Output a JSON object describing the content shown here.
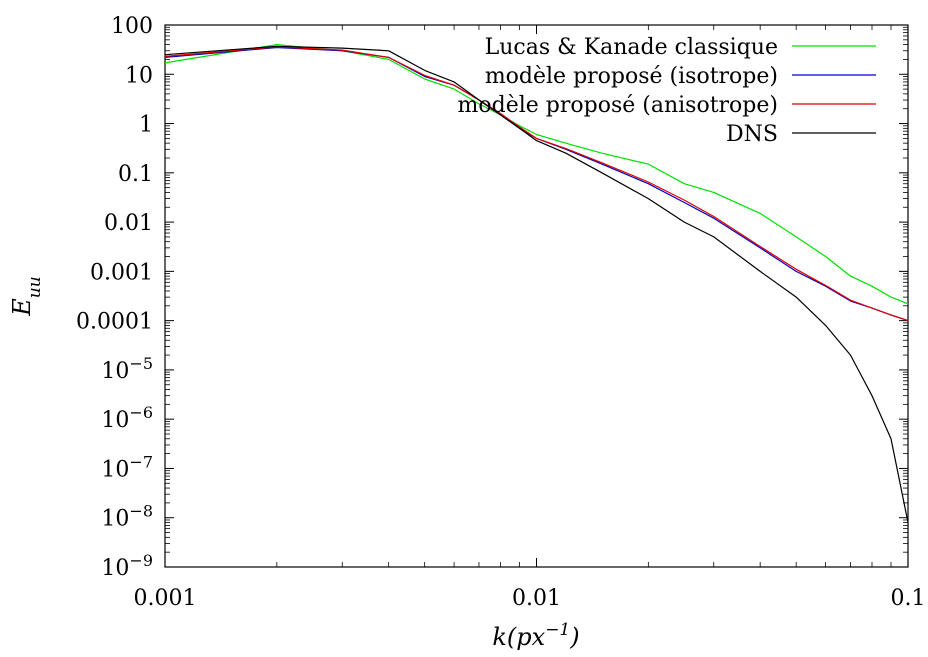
{
  "chart_data": {
    "type": "line",
    "xlabel": "k(px^-1)",
    "ylabel": "E_uu",
    "xscale": "log",
    "yscale": "log",
    "xlim": [
      0.001,
      0.1
    ],
    "ylim": [
      1e-09,
      100
    ],
    "grid": false,
    "legend_position": "top-right",
    "x_ticks": [
      {
        "value": 0.001,
        "label": "0.001"
      },
      {
        "value": 0.01,
        "label": "0.01"
      },
      {
        "value": 0.1,
        "label": "0.1"
      }
    ],
    "y_ticks": [
      {
        "value": 100,
        "label": "100"
      },
      {
        "value": 10,
        "label": "10"
      },
      {
        "value": 1,
        "label": "1"
      },
      {
        "value": 0.1,
        "label": "0.1"
      },
      {
        "value": 0.01,
        "label": "0.01"
      },
      {
        "value": 0.001,
        "label": "0.001"
      },
      {
        "value": 0.0001,
        "label": "0.0001"
      },
      {
        "value": 1e-05,
        "base": "10",
        "exp": "−5"
      },
      {
        "value": 1e-06,
        "base": "10",
        "exp": "−6"
      },
      {
        "value": 1e-07,
        "base": "10",
        "exp": "−7"
      },
      {
        "value": 1e-08,
        "base": "10",
        "exp": "−8"
      },
      {
        "value": 1e-09,
        "base": "10",
        "exp": "−9"
      }
    ],
    "series": [
      {
        "name": "Lucas & Kanade classique",
        "color": "#00e000",
        "points": [
          [
            0.001,
            17
          ],
          [
            0.002,
            40
          ],
          [
            0.003,
            30
          ],
          [
            0.004,
            20
          ],
          [
            0.005,
            8
          ],
          [
            0.006,
            5
          ],
          [
            0.007,
            2.5
          ],
          [
            0.008,
            1.5
          ],
          [
            0.009,
            0.9
          ],
          [
            0.01,
            0.6
          ],
          [
            0.012,
            0.4
          ],
          [
            0.015,
            0.25
          ],
          [
            0.02,
            0.15
          ],
          [
            0.025,
            0.06
          ],
          [
            0.03,
            0.04
          ],
          [
            0.04,
            0.015
          ],
          [
            0.05,
            0.005
          ],
          [
            0.06,
            0.002
          ],
          [
            0.07,
            0.0008
          ],
          [
            0.08,
            0.0005
          ],
          [
            0.09,
            0.0003
          ],
          [
            0.1,
            0.00022
          ]
        ]
      },
      {
        "name": "modèle proposé (isotrope)",
        "color": "#0000c8",
        "points": [
          [
            0.001,
            22
          ],
          [
            0.002,
            35
          ],
          [
            0.003,
            30
          ],
          [
            0.004,
            22
          ],
          [
            0.005,
            9
          ],
          [
            0.006,
            6
          ],
          [
            0.007,
            3
          ],
          [
            0.008,
            1.5
          ],
          [
            0.009,
            0.8
          ],
          [
            0.01,
            0.5
          ],
          [
            0.012,
            0.3
          ],
          [
            0.015,
            0.15
          ],
          [
            0.02,
            0.06
          ],
          [
            0.025,
            0.025
          ],
          [
            0.03,
            0.012
          ],
          [
            0.04,
            0.003
          ],
          [
            0.05,
            0.001
          ],
          [
            0.06,
            0.0005
          ],
          [
            0.07,
            0.00025
          ],
          [
            0.08,
            0.00018
          ],
          [
            0.09,
            0.00013
          ],
          [
            0.1,
            0.0001
          ]
        ]
      },
      {
        "name": "modèle proposé (anisotrope)",
        "color": "#e00000",
        "points": [
          [
            0.001,
            23
          ],
          [
            0.002,
            36
          ],
          [
            0.003,
            31
          ],
          [
            0.004,
            22
          ],
          [
            0.005,
            9.5
          ],
          [
            0.006,
            6
          ],
          [
            0.007,
            3
          ],
          [
            0.008,
            1.6
          ],
          [
            0.009,
            0.85
          ],
          [
            0.01,
            0.5
          ],
          [
            0.012,
            0.31
          ],
          [
            0.015,
            0.16
          ],
          [
            0.02,
            0.065
          ],
          [
            0.025,
            0.028
          ],
          [
            0.03,
            0.013
          ],
          [
            0.04,
            0.0032
          ],
          [
            0.05,
            0.0011
          ],
          [
            0.06,
            0.00052
          ],
          [
            0.07,
            0.00026
          ],
          [
            0.08,
            0.00018
          ],
          [
            0.09,
            0.00013
          ],
          [
            0.1,
            0.0001
          ]
        ]
      },
      {
        "name": "DNS",
        "color": "#000000",
        "points": [
          [
            0.001,
            25
          ],
          [
            0.002,
            37
          ],
          [
            0.003,
            34
          ],
          [
            0.004,
            30
          ],
          [
            0.005,
            12
          ],
          [
            0.006,
            7
          ],
          [
            0.007,
            3
          ],
          [
            0.008,
            1.5
          ],
          [
            0.009,
            0.8
          ],
          [
            0.01,
            0.45
          ],
          [
            0.012,
            0.25
          ],
          [
            0.015,
            0.1
          ],
          [
            0.02,
            0.03
          ],
          [
            0.025,
            0.01
          ],
          [
            0.03,
            0.005
          ],
          [
            0.04,
            0.001
          ],
          [
            0.05,
            0.0003
          ],
          [
            0.06,
            8e-05
          ],
          [
            0.07,
            2e-05
          ],
          [
            0.08,
            3e-06
          ],
          [
            0.09,
            4e-07
          ],
          [
            0.1,
            8e-09
          ]
        ]
      }
    ]
  }
}
